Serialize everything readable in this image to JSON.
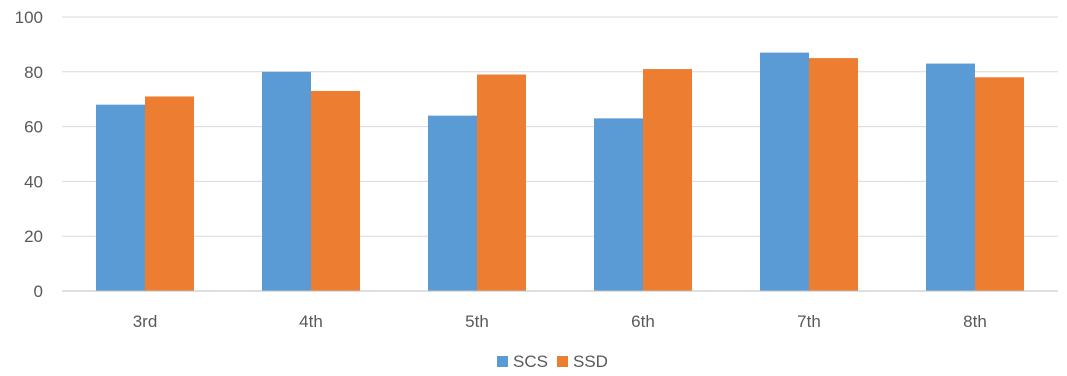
{
  "chart_data": {
    "type": "bar",
    "categories": [
      "3rd",
      "4th",
      "5th",
      "6th",
      "7th",
      "8th"
    ],
    "series": [
      {
        "name": "SCS",
        "color": "#5B9BD5",
        "values": [
          68,
          80,
          64,
          63,
          87,
          83
        ]
      },
      {
        "name": "SSD",
        "color": "#ED7D31",
        "values": [
          71,
          73,
          79,
          81,
          85,
          78
        ]
      }
    ],
    "title": "",
    "xlabel": "",
    "ylabel": "",
    "ylim": [
      0,
      100
    ],
    "yticks": [
      0,
      20,
      40,
      60,
      80,
      100
    ],
    "grid": true,
    "legend_position": "bottom-center"
  },
  "colors": {
    "gridline": "#D9D9D9",
    "axis": "#BFBFBF",
    "text": "#595959"
  }
}
